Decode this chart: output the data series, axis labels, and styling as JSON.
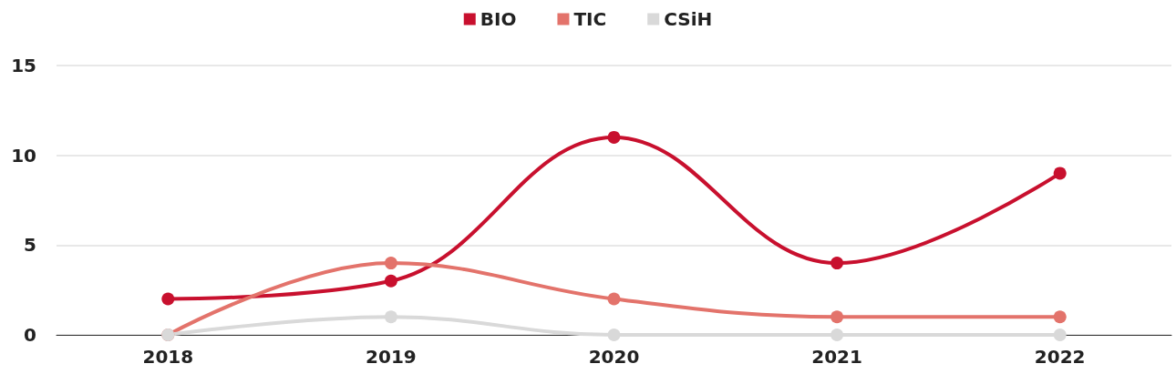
{
  "chart_data": {
    "type": "line",
    "categories": [
      "2018",
      "2019",
      "2020",
      "2021",
      "2022"
    ],
    "series": [
      {
        "name": "BIO",
        "color": "#c8102e",
        "values": [
          2,
          3,
          11,
          4,
          9
        ]
      },
      {
        "name": "TIC",
        "color": "#e3736b",
        "values": [
          0,
          4,
          2,
          1,
          1
        ]
      },
      {
        "name": "CSiH",
        "color": "#d9d9d9",
        "values": [
          0,
          1,
          0,
          0,
          0
        ]
      }
    ],
    "ylim": [
      0,
      15
    ],
    "yticks": [
      0,
      5,
      10,
      15
    ],
    "grid": "y",
    "legend": "top",
    "marker": "circle",
    "line_style": "solid"
  }
}
